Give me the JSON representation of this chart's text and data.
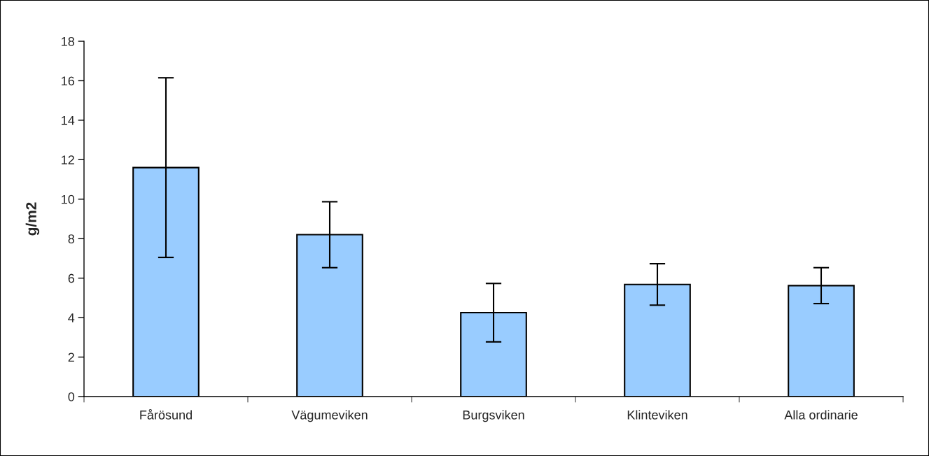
{
  "chart_data": {
    "type": "bar",
    "ylabel": "g/m2",
    "categories": [
      "Fårösund",
      "Vägumeviken",
      "Burgsviken",
      "Klinteviken",
      "Alla ordinarie"
    ],
    "values": [
      11.6,
      8.2,
      4.25,
      5.68,
      5.62
    ],
    "errors": [
      4.55,
      1.67,
      1.48,
      1.05,
      0.91
    ],
    "color": "#99ccff",
    "ylim": [
      0,
      18
    ],
    "yticks": [
      0,
      2,
      4,
      6,
      8,
      10,
      12,
      14,
      16,
      18
    ],
    "grid": false,
    "legend": false
  }
}
